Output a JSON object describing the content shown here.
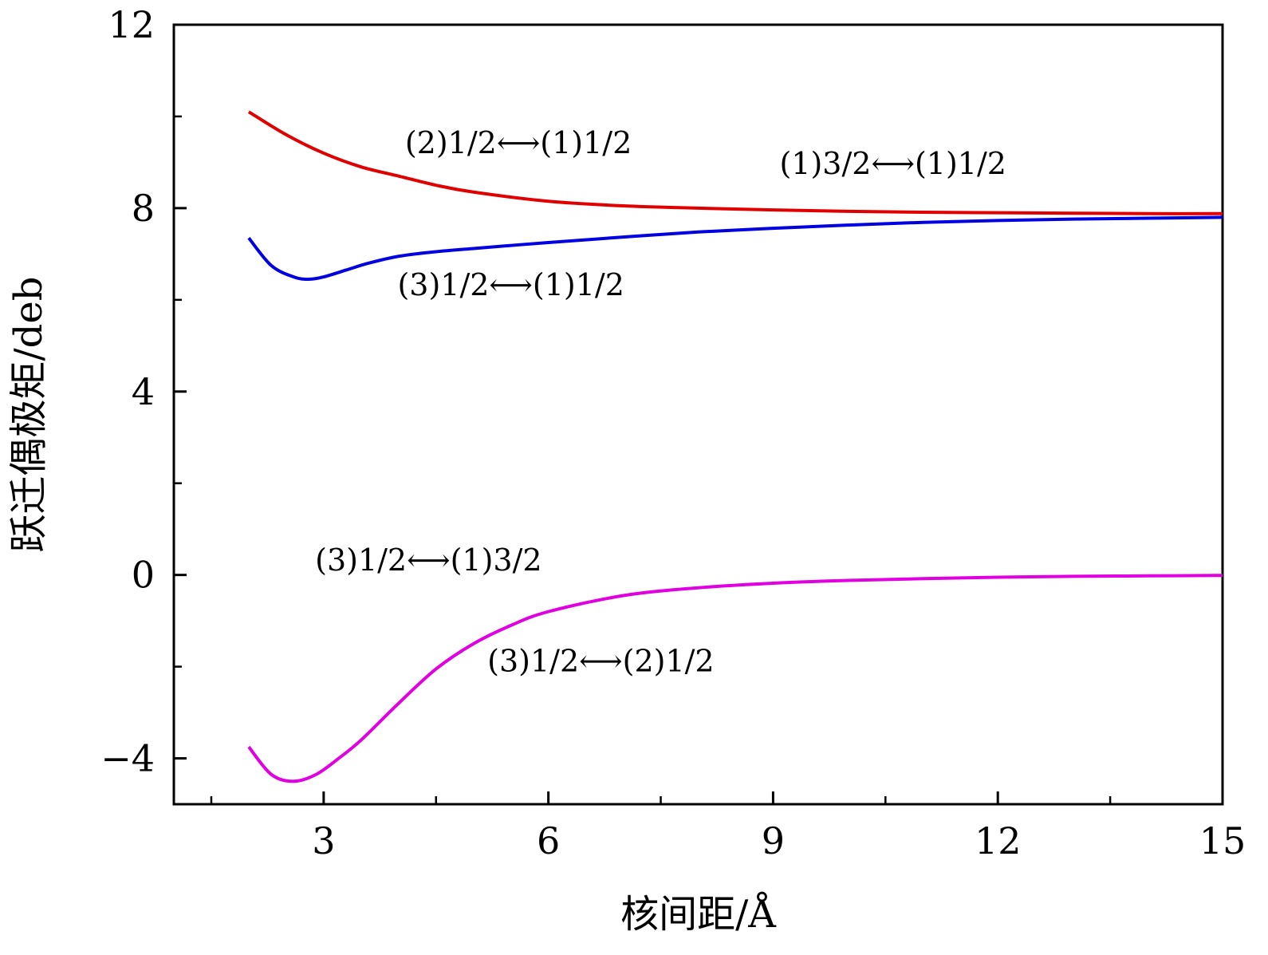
{
  "chart_data": {
    "type": "line",
    "xlabel": "核间距/Å",
    "ylabel": "跃迁偶极矩/deb",
    "xlim": [
      1,
      15
    ],
    "ylim": [
      -5,
      12
    ],
    "x_major_ticks": [
      3,
      6,
      9,
      12,
      15
    ],
    "x_tick_labels": [
      "3",
      "6",
      "9",
      "12",
      "15"
    ],
    "x_minor_ticks": [
      1.5,
      4.5,
      7.5,
      10.5,
      13.5
    ],
    "y_major_ticks": [
      -4,
      0,
      4,
      8,
      12
    ],
    "y_tick_labels": [
      "−4",
      "0",
      "4",
      "8",
      "12"
    ],
    "y_minor_ticks": [
      -2,
      2,
      6,
      10
    ],
    "grid": false,
    "legend": "none",
    "series": [
      {
        "color": "#e00000",
        "x": [
          2.0,
          2.5,
          3.0,
          3.5,
          4.0,
          4.5,
          5.0,
          6.0,
          7.0,
          8.0,
          9.0,
          10.0,
          11.0,
          12.0,
          13.0,
          14.0,
          15.0
        ],
        "y": [
          10.1,
          9.6,
          9.2,
          8.9,
          8.7,
          8.5,
          8.35,
          8.15,
          8.05,
          8.0,
          7.96,
          7.93,
          7.91,
          7.9,
          7.89,
          7.88,
          7.88
        ]
      },
      {
        "color": "#0000e0",
        "x": [
          2.0,
          2.3,
          2.6,
          2.8,
          3.0,
          3.3,
          3.6,
          4.0,
          4.5,
          5.0,
          6.0,
          7.0,
          8.0,
          9.0,
          10.0,
          11.0,
          12.0,
          13.0,
          14.0,
          15.0
        ],
        "y": [
          7.35,
          6.75,
          6.5,
          6.45,
          6.5,
          6.65,
          6.8,
          6.95,
          7.05,
          7.12,
          7.25,
          7.37,
          7.48,
          7.56,
          7.63,
          7.69,
          7.73,
          7.76,
          7.78,
          7.8
        ]
      },
      {
        "color": "#e000e0",
        "x": [
          2.0,
          2.3,
          2.6,
          2.9,
          3.2,
          3.5,
          4.0,
          4.5,
          5.0,
          5.5,
          6.0,
          7.0,
          8.0,
          9.0,
          10.0,
          11.0,
          12.0,
          13.0,
          14.0,
          15.0
        ],
        "y": [
          -3.75,
          -4.35,
          -4.5,
          -4.35,
          -4.0,
          -3.6,
          -2.8,
          -2.05,
          -1.5,
          -1.1,
          -0.8,
          -0.45,
          -0.28,
          -0.18,
          -0.12,
          -0.08,
          -0.05,
          -0.03,
          -0.02,
          -0.01
        ]
      }
    ],
    "annotations": [
      {
        "text": "(2)1/2⟷(1)1/2",
        "x": 5.6,
        "y": 9.2
      },
      {
        "text": "(1)3/2⟷(1)1/2",
        "x": 10.6,
        "y": 8.75
      },
      {
        "text": "(3)1/2⟷(1)1/2",
        "x": 5.5,
        "y": 6.1
      },
      {
        "text": "(3)1/2⟷(1)3/2",
        "x": 4.4,
        "y": 0.1
      },
      {
        "text": "(3)1/2⟷(2)1/2",
        "x": 6.7,
        "y": -2.1
      }
    ]
  }
}
